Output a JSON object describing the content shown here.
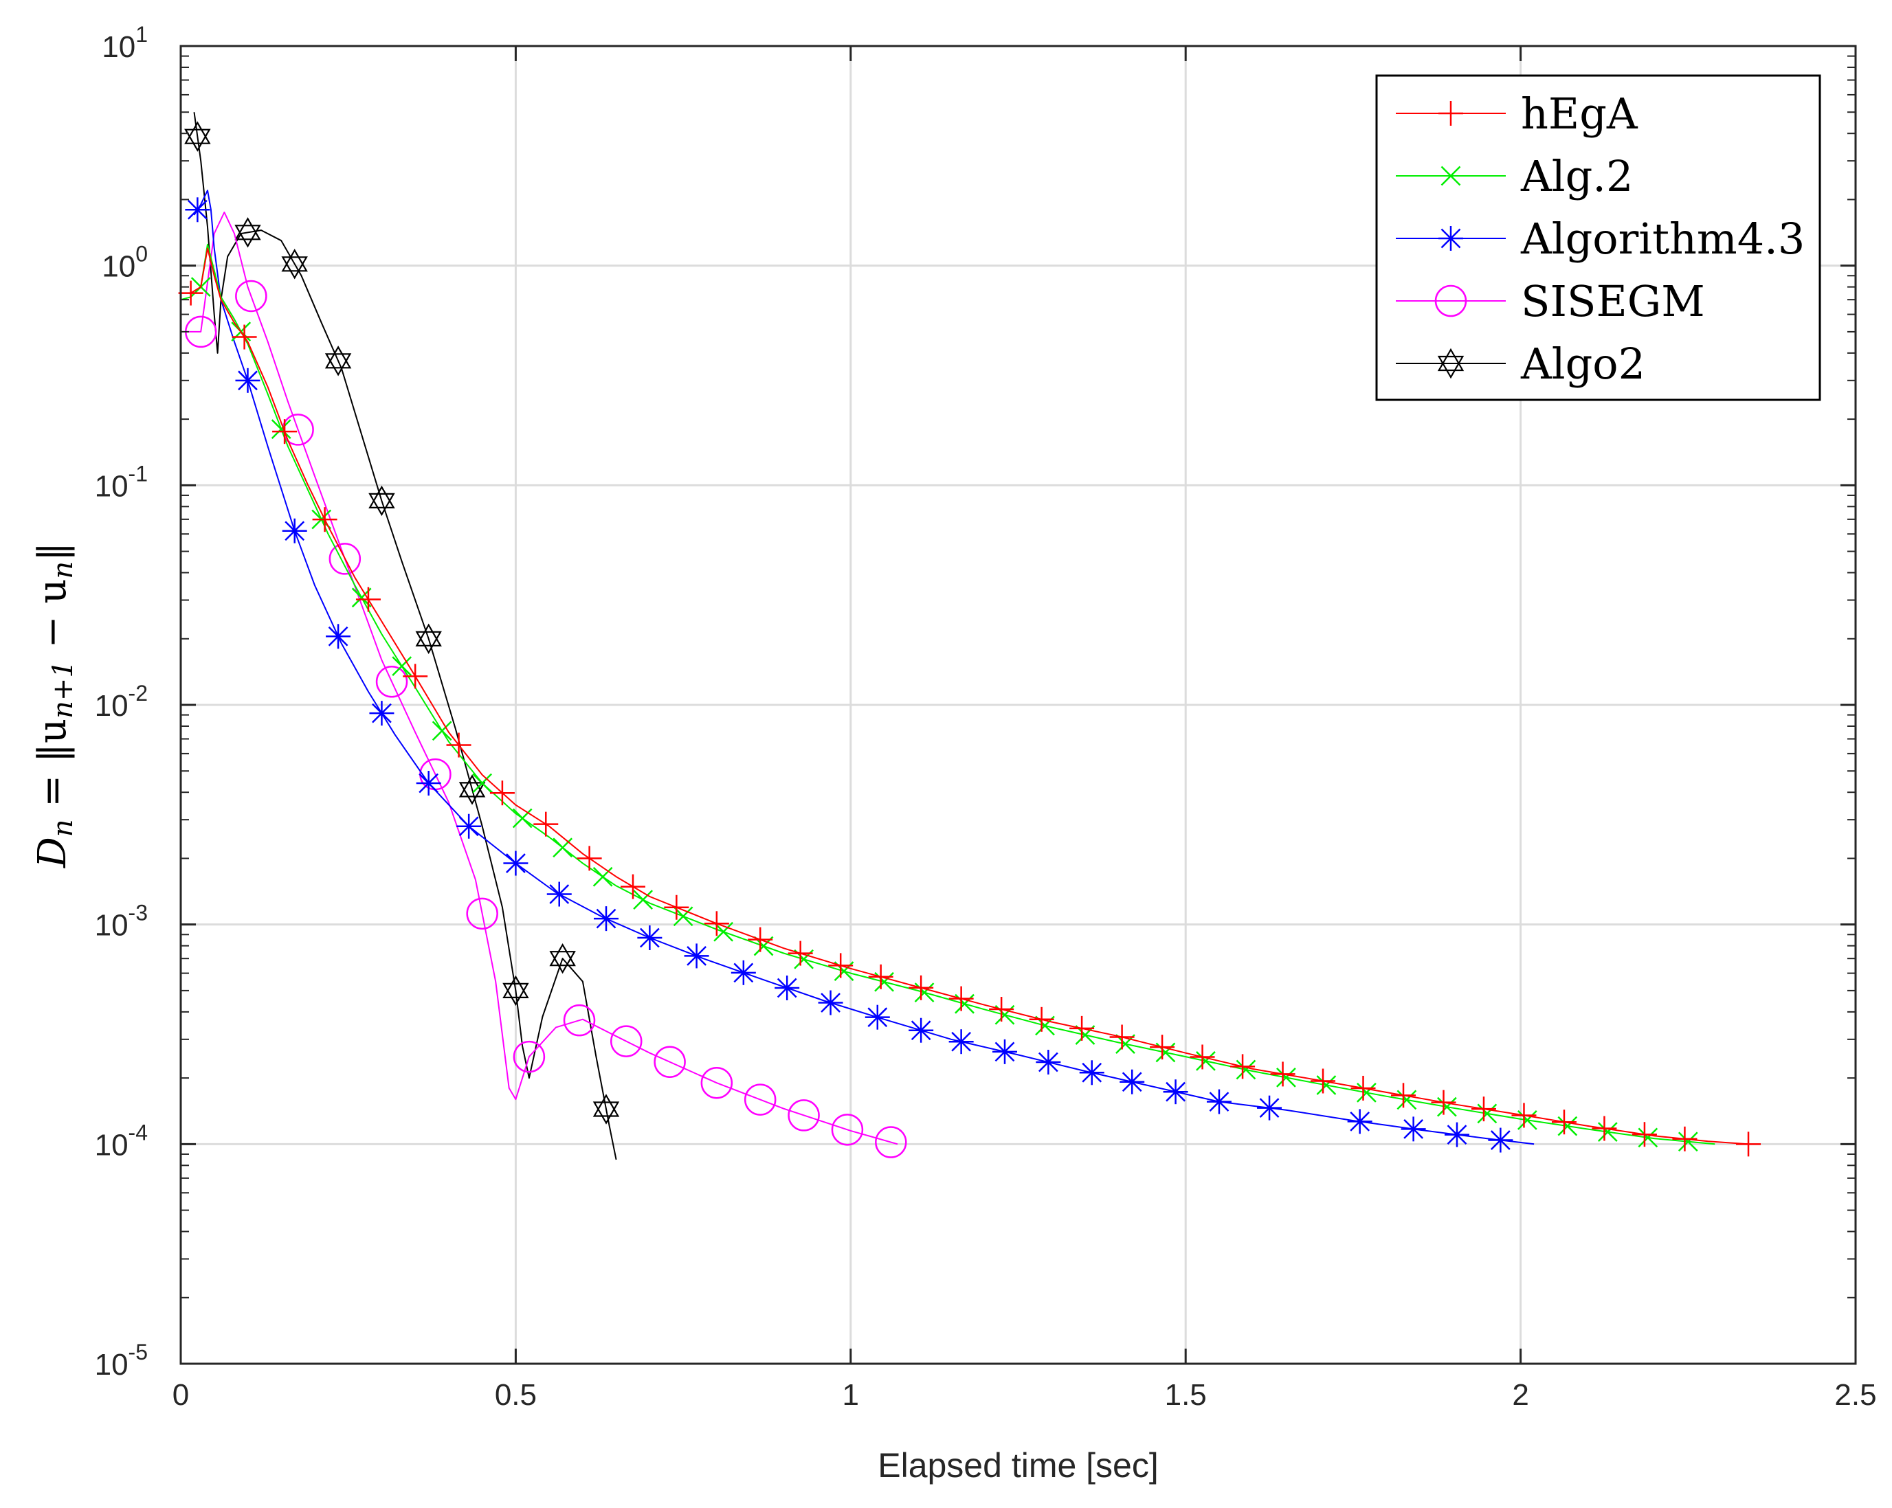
{
  "chart_data": {
    "type": "line",
    "xlabel": "Elapsed time [sec]",
    "ylabel": {
      "prefix": "D",
      "sub": "n",
      "middle": " = ‖u",
      "sub2": "n+1",
      "end": " − u",
      "sub3": "n",
      "close": "‖"
    },
    "xlim": [
      0,
      2.5
    ],
    "ylim_exp": [
      -5,
      1
    ],
    "yscale": "log",
    "grid": true,
    "legend_position": "top-right",
    "xticks": [
      0,
      0.5,
      1,
      1.5,
      2,
      2.5
    ],
    "xtick_labels": [
      "0",
      "0.5",
      "1",
      "1.5",
      "2",
      "2.5"
    ],
    "ytick_exponents": [
      -5,
      -4,
      -3,
      -2,
      -1,
      0,
      1
    ],
    "ytick_labels": [
      {
        "base": "10",
        "exp": "-5"
      },
      {
        "base": "10",
        "exp": "-4"
      },
      {
        "base": "10",
        "exp": "-3"
      },
      {
        "base": "10",
        "exp": "-2"
      },
      {
        "base": "10",
        "exp": "-1"
      },
      {
        "base": "10",
        "exp": "0"
      },
      {
        "base": "10",
        "exp": "1"
      }
    ],
    "series": [
      {
        "name": "hEgA",
        "color": "#ff0000",
        "marker": "plus",
        "x": [
          0.0,
          0.015,
          0.03,
          0.04,
          0.05,
          0.06,
          0.08,
          0.1,
          0.13,
          0.16,
          0.19,
          0.22,
          0.26,
          0.3,
          0.35,
          0.4,
          0.45,
          0.5,
          0.55,
          0.6,
          0.65,
          0.7,
          0.8,
          0.9,
          1.0,
          1.1,
          1.2,
          1.3,
          1.4,
          1.5,
          1.6,
          1.7,
          1.8,
          1.9,
          2.0,
          2.1,
          2.2,
          2.28,
          2.34
        ],
        "y": [
          0.75,
          0.75,
          0.8,
          1.2,
          0.9,
          0.7,
          0.55,
          0.45,
          0.28,
          0.16,
          0.1,
          0.065,
          0.038,
          0.024,
          0.0135,
          0.0075,
          0.0048,
          0.0035,
          0.0028,
          0.0021,
          0.00165,
          0.00134,
          0.00101,
          0.00078,
          0.00063,
          0.00052,
          0.00043,
          0.00036,
          0.00031,
          0.00026,
          0.00022,
          0.000195,
          0.000172,
          0.000152,
          0.000136,
          0.000121,
          0.000109,
          0.000103,
          0.0001
        ],
        "marker_x": [
          0.015,
          0.095,
          0.155,
          0.215,
          0.28,
          0.35,
          0.415,
          0.48,
          0.545,
          0.61,
          0.675,
          0.74,
          0.8,
          0.865,
          0.925,
          0.985,
          1.045,
          1.105,
          1.165,
          1.225,
          1.285,
          1.345,
          1.405,
          1.465,
          1.525,
          1.585,
          1.645,
          1.705,
          1.765,
          1.825,
          1.885,
          1.945,
          2.005,
          2.065,
          2.125,
          2.185,
          2.245,
          2.34
        ]
      },
      {
        "name": "Alg.2",
        "color": "#00ee00",
        "marker": "x",
        "x": [
          0.0,
          0.015,
          0.03,
          0.04,
          0.05,
          0.06,
          0.08,
          0.1,
          0.13,
          0.16,
          0.19,
          0.22,
          0.26,
          0.3,
          0.35,
          0.4,
          0.45,
          0.5,
          0.55,
          0.6,
          0.65,
          0.7,
          0.8,
          0.9,
          1.0,
          1.1,
          1.2,
          1.3,
          1.4,
          1.5,
          1.6,
          1.7,
          1.8,
          1.9,
          2.0,
          2.1,
          2.2,
          2.29
        ],
        "y": [
          0.7,
          0.72,
          0.8,
          1.25,
          0.95,
          0.72,
          0.57,
          0.44,
          0.26,
          0.15,
          0.095,
          0.06,
          0.035,
          0.021,
          0.012,
          0.0068,
          0.0044,
          0.0032,
          0.0025,
          0.0019,
          0.0015,
          0.00125,
          0.00095,
          0.00074,
          0.0006,
          0.0005,
          0.00041,
          0.00034,
          0.00029,
          0.00025,
          0.000215,
          0.000188,
          0.000165,
          0.000146,
          0.00013,
          0.000117,
          0.000106,
          0.0001
        ],
        "marker_x": [
          0.03,
          0.09,
          0.15,
          0.21,
          0.27,
          0.33,
          0.39,
          0.45,
          0.51,
          0.57,
          0.63,
          0.69,
          0.75,
          0.81,
          0.87,
          0.93,
          0.99,
          1.05,
          1.11,
          1.17,
          1.23,
          1.29,
          1.35,
          1.41,
          1.47,
          1.53,
          1.59,
          1.65,
          1.71,
          1.77,
          1.83,
          1.89,
          1.95,
          2.01,
          2.07,
          2.13,
          2.19,
          2.25
        ]
      },
      {
        "name": "Algorithm4.3",
        "color": "#0000ff",
        "marker": "asterisk",
        "x": [
          0.02,
          0.03,
          0.04,
          0.045,
          0.05,
          0.06,
          0.08,
          0.1,
          0.13,
          0.17,
          0.2,
          0.24,
          0.28,
          0.32,
          0.37,
          0.43,
          0.5,
          0.56,
          0.63,
          0.7,
          0.78,
          0.87,
          0.96,
          1.05,
          1.15,
          1.25,
          1.35,
          1.45,
          1.55,
          1.65,
          1.75,
          1.85,
          1.95,
          2.02
        ],
        "y": [
          1.7,
          1.9,
          2.2,
          1.8,
          1.2,
          0.7,
          0.45,
          0.3,
          0.15,
          0.062,
          0.035,
          0.019,
          0.0115,
          0.0073,
          0.0044,
          0.0028,
          0.0019,
          0.0014,
          0.00108,
          0.00087,
          0.0007,
          0.00056,
          0.00045,
          0.00037,
          0.0003,
          0.000255,
          0.000215,
          0.000183,
          0.000156,
          0.000143,
          0.000128,
          0.000116,
          0.000106,
          0.0001
        ],
        "marker_x": [
          0.025,
          0.1,
          0.17,
          0.235,
          0.3,
          0.37,
          0.43,
          0.5,
          0.565,
          0.635,
          0.7,
          0.77,
          0.84,
          0.905,
          0.97,
          1.04,
          1.105,
          1.165,
          1.23,
          1.295,
          1.36,
          1.42,
          1.485,
          1.55,
          1.625,
          1.76,
          1.84,
          1.905,
          1.97
        ]
      },
      {
        "name": "SISEGM",
        "color": "#ff00ff",
        "marker": "circle",
        "x": [
          0.0,
          0.03,
          0.05,
          0.065,
          0.08,
          0.1,
          0.13,
          0.16,
          0.2,
          0.25,
          0.3,
          0.35,
          0.4,
          0.44,
          0.47,
          0.49,
          0.5,
          0.52,
          0.56,
          0.6,
          0.65,
          0.7,
          0.8,
          0.9,
          1.0,
          1.07
        ],
        "y": [
          0.5,
          0.5,
          1.4,
          1.75,
          1.4,
          0.8,
          0.45,
          0.24,
          0.11,
          0.042,
          0.016,
          0.0075,
          0.0036,
          0.0016,
          0.00055,
          0.00018,
          0.00016,
          0.00025,
          0.00034,
          0.00037,
          0.00031,
          0.00026,
          0.00019,
          0.000145,
          0.000115,
          0.0001
        ],
        "marker_x": [
          0.03,
          0.105,
          0.175,
          0.245,
          0.315,
          0.38,
          0.45,
          0.52,
          0.595,
          0.665,
          0.73,
          0.8,
          0.865,
          0.93,
          0.995,
          1.06
        ]
      },
      {
        "name": "Algo2",
        "color": "#000000",
        "marker": "hexagram",
        "x": [
          0.02,
          0.03,
          0.04,
          0.05,
          0.055,
          0.06,
          0.07,
          0.09,
          0.12,
          0.15,
          0.18,
          0.21,
          0.24,
          0.27,
          0.3,
          0.33,
          0.37,
          0.41,
          0.45,
          0.48,
          0.5,
          0.51,
          0.52,
          0.54,
          0.57,
          0.6,
          0.62,
          0.64,
          0.65
        ],
        "y": [
          5.0,
          3.0,
          1.5,
          0.6,
          0.4,
          0.7,
          1.1,
          1.4,
          1.45,
          1.3,
          0.9,
          0.55,
          0.34,
          0.17,
          0.085,
          0.045,
          0.02,
          0.0078,
          0.0028,
          0.0012,
          0.0005,
          0.00028,
          0.0002,
          0.00038,
          0.0007,
          0.00055,
          0.00025,
          0.00012,
          8.5e-05
        ],
        "marker_x": [
          0.025,
          0.1,
          0.17,
          0.235,
          0.3,
          0.37,
          0.435,
          0.5,
          0.57,
          0.635
        ]
      }
    ]
  }
}
